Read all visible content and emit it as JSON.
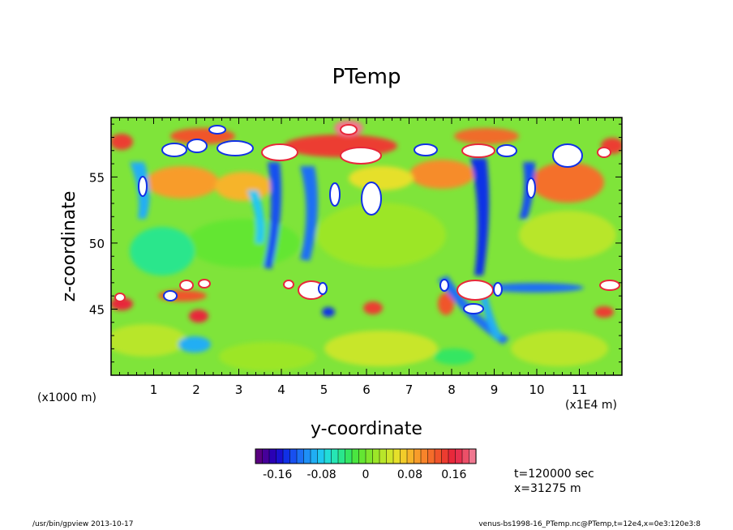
{
  "chart_data": {
    "type": "heatmap",
    "title": "PTemp",
    "xlabel": "y-coordinate",
    "ylabel": "z-coordinate",
    "x_unit": "(x1E4 m)",
    "y_unit": "(x1000 m)",
    "xlim": [
      0,
      12
    ],
    "ylim": [
      40,
      59.5
    ],
    "x_ticks": [
      "1",
      "2",
      "3",
      "4",
      "5",
      "6",
      "7",
      "8",
      "9",
      "10",
      "11"
    ],
    "y_ticks": [
      "45",
      "50",
      "55"
    ],
    "colorbar": {
      "range": [
        -0.2,
        0.2
      ],
      "tick_labels": [
        "-0.16",
        "-0.08",
        "0",
        "0.08",
        "0.16"
      ],
      "tick_values": [
        -0.16,
        -0.08,
        0,
        0.08,
        0.16
      ],
      "colors": [
        "#5a0080",
        "#46009a",
        "#2a00b5",
        "#1a10d0",
        "#1030e6",
        "#1850f0",
        "#1c70f4",
        "#1e90f6",
        "#20aef4",
        "#20c8f0",
        "#22dcd8",
        "#26e6b4",
        "#2ae68c",
        "#34e662",
        "#4ae640",
        "#64e632",
        "#80e62c",
        "#9ce628",
        "#b8e62a",
        "#d0e62a",
        "#e6e02a",
        "#f2cc2a",
        "#f6b42a",
        "#f89c2a",
        "#f8842a",
        "#f46c2a",
        "#f0542a",
        "#ec3c30",
        "#e8283a",
        "#e8304e",
        "#ec5068",
        "#f07890"
      ]
    },
    "grid": false
  },
  "info": {
    "time": "t=120000 sec",
    "position": "x=31275 m"
  },
  "footer": {
    "left": "/usr/bin/gpview  2013-10-17",
    "right": "venus-bs1998-16_PTemp.nc@PTemp,t=12e4,x=0e3:120e3:8"
  }
}
